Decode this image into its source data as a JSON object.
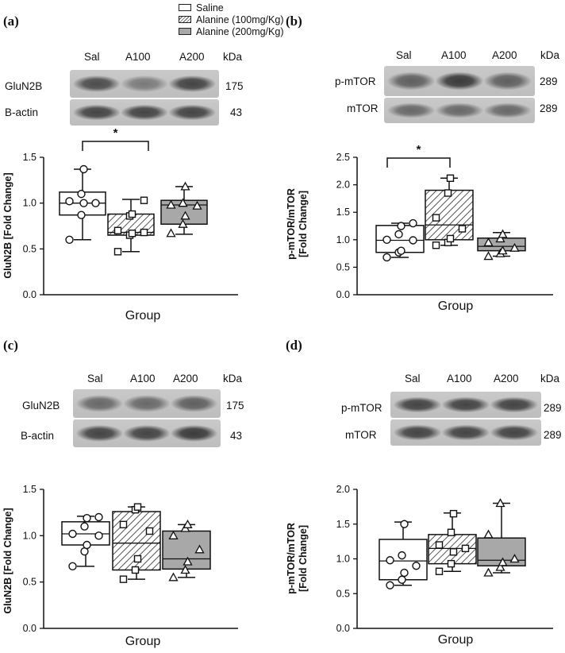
{
  "legend": {
    "items": [
      {
        "label": "Saline",
        "fill": "white"
      },
      {
        "label": "Alanine (100mg/Kg)",
        "fill": "hatch"
      },
      {
        "label": "Alanine (200mg/Kg)",
        "fill": "gray"
      }
    ]
  },
  "colors": {
    "box_gray": "#a8a8a8",
    "hatch_line": "#555555",
    "outline": "#111111"
  },
  "panels": [
    {
      "letter": "(a)",
      "lanes": [
        "Sal",
        "A100",
        "A200"
      ],
      "unit": "kDa",
      "blots": [
        {
          "label": "GluN2B",
          "kda": "175",
          "intensity": [
            0.85,
            0.6,
            0.9
          ]
        },
        {
          "label": "B-actin",
          "kda": "43",
          "intensity": [
            0.9,
            0.9,
            0.9
          ]
        }
      ]
    },
    {
      "letter": "(b)",
      "lanes": [
        "Sal",
        "A100",
        "A200"
      ],
      "unit": "kDa",
      "blots": [
        {
          "label": "p-mTOR",
          "kda": "289",
          "intensity": [
            0.75,
            0.95,
            0.75
          ]
        },
        {
          "label": "mTOR",
          "kda": "289",
          "intensity": [
            0.7,
            0.7,
            0.7
          ]
        }
      ]
    },
    {
      "letter": "(c)",
      "lanes": [
        "Sal",
        "A100",
        "A200"
      ],
      "unit": "kDa",
      "blots": [
        {
          "label": "GluN2B",
          "kda": "175",
          "intensity": [
            0.7,
            0.7,
            0.75
          ]
        },
        {
          "label": "B-actin",
          "kda": "43",
          "intensity": [
            0.9,
            0.9,
            0.95
          ]
        }
      ]
    },
    {
      "letter": "(d)",
      "lanes": [
        "Sal",
        "A100",
        "A200"
      ],
      "unit": "kDa",
      "blots": [
        {
          "label": "p-mTOR",
          "kda": "289",
          "intensity": [
            0.9,
            0.9,
            0.9
          ]
        },
        {
          "label": "mTOR",
          "kda": "289",
          "intensity": [
            0.9,
            0.9,
            0.9
          ]
        }
      ]
    }
  ],
  "chart_data": [
    {
      "type": "box",
      "panel": "(a)",
      "ylabel": "GluN2B [Fold Change]",
      "xlabel": "Group",
      "ylim": [
        0,
        1.5
      ],
      "yticks": [
        "0.0",
        "0.5",
        "1.0",
        "1.5"
      ],
      "significance": "*",
      "series": [
        {
          "name": "Saline",
          "fill": "white",
          "marker": "circle",
          "min": 0.6,
          "q1": 0.87,
          "median": 1.0,
          "q3": 1.12,
          "max": 1.37,
          "points": [
            0.6,
            0.87,
            1.0,
            1.0,
            1.02,
            1.1,
            1.37
          ]
        },
        {
          "name": "Alanine (100mg/Kg)",
          "fill": "hatch",
          "marker": "square",
          "min": 0.47,
          "q1": 0.65,
          "median": 0.68,
          "q3": 0.88,
          "max": 1.04,
          "points": [
            0.47,
            0.65,
            0.67,
            0.68,
            0.7,
            0.86,
            0.88,
            1.03
          ]
        },
        {
          "name": "Alanine (200mg/Kg)",
          "fill": "gray",
          "marker": "triangle",
          "min": 0.66,
          "q1": 0.77,
          "median": 0.98,
          "q3": 1.03,
          "max": 1.18,
          "points": [
            0.67,
            0.77,
            0.86,
            0.97,
            0.98,
            1.0,
            1.18
          ]
        }
      ]
    },
    {
      "type": "box",
      "panel": "(b)",
      "ylabel": "p-mTOR/mTOR [Fold Change]",
      "xlabel": "Group",
      "ylim": [
        0,
        2.5
      ],
      "yticks": [
        "0.0",
        "0.5",
        "1.0",
        "1.5",
        "2.0",
        "2.5"
      ],
      "significance": "*",
      "series": [
        {
          "name": "Saline",
          "fill": "white",
          "marker": "circle",
          "min": 0.68,
          "q1": 0.77,
          "median": 0.99,
          "q3": 1.26,
          "max": 1.3,
          "points": [
            0.68,
            0.77,
            0.8,
            0.99,
            1.0,
            1.1,
            1.25,
            1.3
          ]
        },
        {
          "name": "Alanine (100mg/Kg)",
          "fill": "hatch",
          "marker": "square",
          "min": 0.9,
          "q1": 1.0,
          "median": 1.27,
          "q3": 1.9,
          "max": 2.12,
          "points": [
            0.9,
            0.95,
            1.02,
            1.2,
            1.4,
            1.85,
            2.12
          ]
        },
        {
          "name": "Alanine (200mg/Kg)",
          "fill": "gray",
          "marker": "triangle",
          "min": 0.7,
          "q1": 0.8,
          "median": 0.88,
          "q3": 1.03,
          "max": 1.13,
          "points": [
            0.7,
            0.75,
            0.8,
            0.85,
            0.95,
            1.02,
            1.1
          ]
        }
      ]
    },
    {
      "type": "box",
      "panel": "(c)",
      "ylabel": "GluN2B [Fold Change]",
      "xlabel": "Group",
      "ylim": [
        0,
        1.5
      ],
      "yticks": [
        "0.0",
        "0.5",
        "1.0",
        "1.5"
      ],
      "series": [
        {
          "name": "Saline",
          "fill": "white",
          "marker": "circle",
          "min": 0.67,
          "q1": 0.9,
          "median": 1.02,
          "q3": 1.15,
          "max": 1.21,
          "points": [
            0.67,
            0.83,
            0.9,
            1.0,
            1.02,
            1.1,
            1.19,
            1.2
          ]
        },
        {
          "name": "Alanine (100mg/Kg)",
          "fill": "hatch",
          "marker": "square",
          "min": 0.53,
          "q1": 0.63,
          "median": 0.92,
          "q3": 1.26,
          "max": 1.31,
          "points": [
            0.53,
            0.63,
            0.75,
            1.05,
            1.12,
            1.28,
            1.31
          ]
        },
        {
          "name": "Alanine (200mg/Kg)",
          "fill": "gray",
          "marker": "triangle",
          "min": 0.55,
          "q1": 0.64,
          "median": 0.75,
          "q3": 1.05,
          "max": 1.12,
          "points": [
            0.55,
            0.63,
            0.72,
            0.85,
            1.0,
            1.08,
            1.12
          ]
        }
      ]
    },
    {
      "type": "box",
      "panel": "(d)",
      "ylabel": "p-mTOR/mTOR [Fold Change]",
      "xlabel": "Group",
      "ylim": [
        0,
        2.0
      ],
      "yticks": [
        "0.0",
        "0.5",
        "1.0",
        "1.5",
        "2.0"
      ],
      "series": [
        {
          "name": "Saline",
          "fill": "white",
          "marker": "circle",
          "min": 0.62,
          "q1": 0.7,
          "median": 0.97,
          "q3": 1.28,
          "max": 1.53,
          "points": [
            0.62,
            0.7,
            0.8,
            0.9,
            0.98,
            1.05,
            1.5
          ]
        },
        {
          "name": "Alanine (100mg/Kg)",
          "fill": "hatch",
          "marker": "square",
          "min": 0.82,
          "q1": 0.93,
          "median": 1.15,
          "q3": 1.35,
          "max": 1.66,
          "points": [
            0.82,
            0.93,
            1.1,
            1.15,
            1.2,
            1.38,
            1.65
          ]
        },
        {
          "name": "Alanine (200mg/Kg)",
          "fill": "gray",
          "marker": "triangle",
          "min": 0.8,
          "q1": 0.9,
          "median": 0.98,
          "q3": 1.3,
          "max": 1.8,
          "points": [
            0.8,
            0.88,
            0.95,
            1.0,
            1.35,
            1.8
          ]
        }
      ]
    }
  ]
}
